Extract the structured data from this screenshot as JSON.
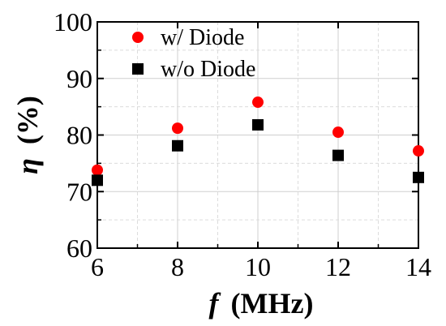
{
  "chart_data": {
    "type": "scatter",
    "xlabel_symbol": "f",
    "xlabel_unit": "(MHz)",
    "ylabel_symbol": "η",
    "ylabel_unit": "(%)",
    "xlim": [
      6,
      14
    ],
    "ylim": [
      60,
      100
    ],
    "xticks": [
      6,
      8,
      10,
      12,
      14
    ],
    "yticks": [
      60,
      70,
      80,
      90,
      100
    ],
    "grid": true,
    "legend_position": "top-left",
    "x": [
      6,
      8,
      10,
      12,
      14
    ],
    "series": [
      {
        "name": "w/ Diode",
        "marker": "circle",
        "color": "#ff0000",
        "values": [
          73.8,
          81.2,
          85.8,
          80.5,
          77.2
        ]
      },
      {
        "name": "w/o Diode",
        "marker": "square",
        "color": "#000000",
        "values": [
          72.0,
          78.1,
          81.8,
          76.4,
          72.5
        ]
      }
    ]
  }
}
